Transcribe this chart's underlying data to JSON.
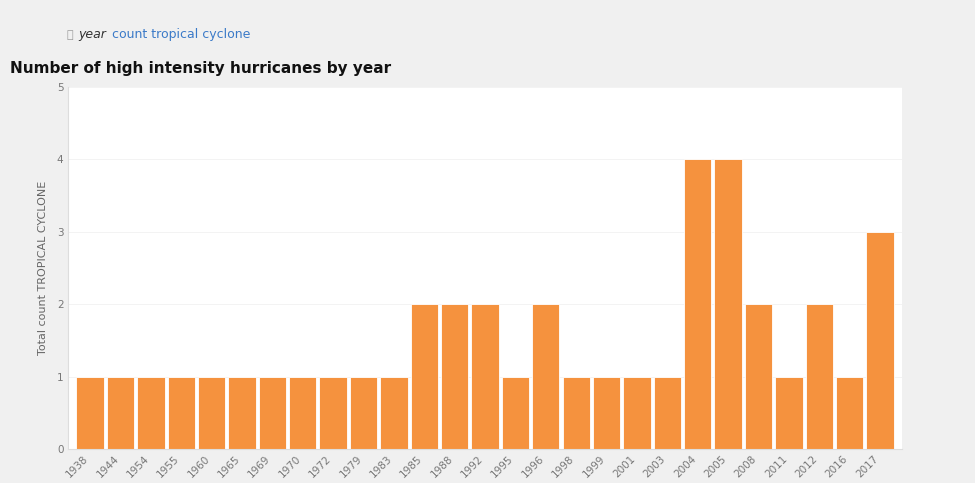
{
  "title": "Number of high intensity hurricanes by year",
  "xlabel": "YEAR",
  "ylabel": "Total count TROPICAL CYCLONE",
  "bar_color": "#F5923E",
  "outer_bg_color": "#f0f0f0",
  "topbar_bg_color": "#f7f7f7",
  "chart_bg_color": "#ffffff",
  "years": [
    1938,
    1944,
    1954,
    1955,
    1960,
    1965,
    1969,
    1970,
    1972,
    1979,
    1983,
    1985,
    1988,
    1992,
    1995,
    1996,
    1998,
    1999,
    2001,
    2003,
    2004,
    2005,
    2008,
    2011,
    2012,
    2016,
    2017
  ],
  "values": [
    1,
    1,
    1,
    1,
    1,
    1,
    1,
    1,
    1,
    1,
    1,
    2,
    2,
    2,
    1,
    2,
    1,
    1,
    1,
    1,
    4,
    4,
    2,
    1,
    2,
    1,
    3
  ],
  "ylim": [
    0,
    5
  ],
  "yticks": [
    0,
    1,
    2,
    3,
    4,
    5
  ],
  "title_fontsize": 11,
  "axis_label_fontsize": 8,
  "tick_fontsize": 7.5,
  "bar_edge_color": "white",
  "bar_linewidth": 0.6,
  "bar_width": 0.9,
  "spine_color": "#dddddd",
  "tick_color": "#777777",
  "title_color": "#111111",
  "label_color": "#666666"
}
